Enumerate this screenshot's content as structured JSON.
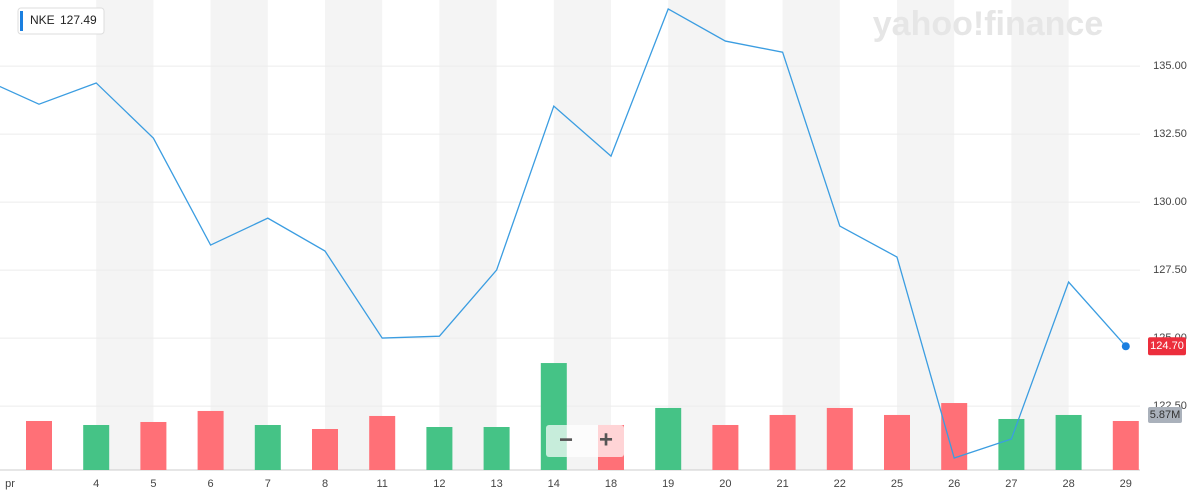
{
  "chart_data": {
    "type": "line",
    "symbol": "NKE",
    "quote": 127.49,
    "watermark": "yahoo!finance",
    "zoom_out": "−",
    "zoom_in": "+",
    "categories": [
      "pr",
      null,
      "4",
      "5",
      "6",
      "7",
      "8",
      "11",
      "12",
      "13",
      "14",
      "18",
      "19",
      "20",
      "21",
      "22",
      "25",
      "26",
      "27",
      "28",
      "29"
    ],
    "series": [
      {
        "name": "NKE",
        "color": "#3b9de1",
        "values": [
          134.55,
          133.6,
          134.38,
          132.35,
          128.42,
          129.41,
          128.2,
          125.0,
          125.07,
          127.5,
          133.53,
          131.69,
          137.1,
          135.92,
          135.51,
          129.12,
          127.98,
          120.59,
          121.29,
          127.06,
          124.7
        ],
        "value_labels": [
          null,
          null,
          null,
          null,
          null,
          null,
          null,
          null,
          null,
          null,
          null,
          null,
          null,
          null,
          null,
          null,
          null,
          null,
          null,
          null,
          "124.70"
        ],
        "last_label_color": "#ec2e3c"
      },
      {
        "name": "Volume",
        "type": "bar",
        "axis": "y2",
        "up_color": "#45c386",
        "down_color": "#ff7077",
        "values": [
          null,
          5.87,
          5.39,
          5.75,
          7.07,
          5.39,
          4.91,
          6.47,
          5.15,
          5.15,
          12.81,
          5.39,
          7.43,
          5.39,
          6.59,
          7.43,
          6.59,
          8.02,
          6.11,
          6.59,
          5.87
        ],
        "value_labels": [
          null,
          null,
          null,
          null,
          null,
          null,
          null,
          null,
          null,
          null,
          null,
          null,
          null,
          null,
          null,
          null,
          null,
          null,
          null,
          null,
          "5.87M"
        ]
      }
    ],
    "ylim": [
      120.15,
      137.43
    ],
    "yticks": [
      {
        "value": 122.5,
        "label": "122.50"
      },
      {
        "value": 125,
        "label": "125.00"
      },
      {
        "value": 127.5,
        "label": "127.50"
      },
      {
        "value": 130,
        "label": "130.00"
      },
      {
        "value": 132.5,
        "label": "132.50"
      },
      {
        "value": 135,
        "label": "135.00"
      }
    ],
    "y2lim": [
      0,
      20
    ],
    "grid": true
  }
}
